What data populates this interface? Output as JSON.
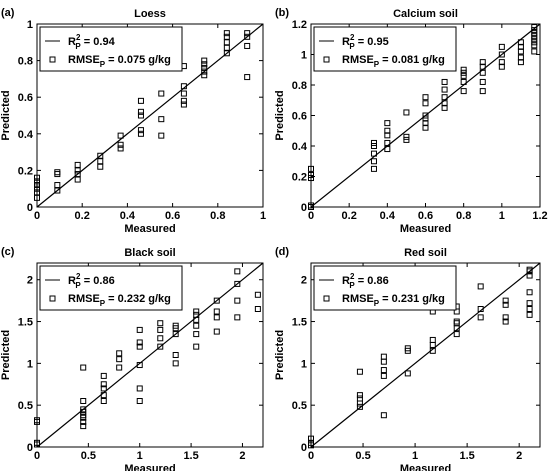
{
  "chart_data": [
    {
      "type": "scatter",
      "panel": "(a)",
      "title": "Loess",
      "x_label": "Measured",
      "y_label": "Predicted",
      "xlim": [
        0,
        1
      ],
      "ylim": [
        0,
        1
      ],
      "xticks": [
        0,
        0.2,
        0.4,
        0.6,
        0.8,
        1
      ],
      "yticks": [
        0,
        0.2,
        0.4,
        0.6,
        0.8,
        1
      ],
      "legend": {
        "fit": {
          "label": "R",
          "sup": "2",
          "sub": "P",
          "text": " = 0.94"
        },
        "points": {
          "label": "RMSE",
          "sub": "P",
          "text": " = 0.075 g/kg"
        }
      },
      "series": [
        {
          "color": "#000000",
          "x": [
            0,
            0,
            0,
            0,
            0,
            0,
            0.09,
            0.09,
            0.09,
            0.09,
            0.18,
            0.18,
            0.18,
            0.18,
            0.28,
            0.28,
            0.28,
            0.37,
            0.37,
            0.37,
            0.46,
            0.46,
            0.46,
            0.46,
            0.46,
            0.55,
            0.55,
            0.55,
            0.65,
            0.65,
            0.65,
            0.65,
            0.65,
            0.74,
            0.74,
            0.74,
            0.74,
            0.74,
            0.84,
            0.84,
            0.84,
            0.84,
            0.84,
            0.93,
            0.93,
            0.93,
            0.93
          ],
          "values": [
            0.05,
            0.08,
            0.1,
            0.12,
            0.14,
            0.16,
            0.09,
            0.12,
            0.18,
            0.19,
            0.15,
            0.18,
            0.2,
            0.23,
            0.22,
            0.25,
            0.28,
            0.32,
            0.34,
            0.39,
            0.4,
            0.42,
            0.5,
            0.52,
            0.58,
            0.39,
            0.48,
            0.62,
            0.56,
            0.58,
            0.62,
            0.66,
            0.77,
            0.72,
            0.74,
            0.76,
            0.78,
            0.8,
            0.84,
            0.87,
            0.9,
            0.93,
            0.95,
            0.71,
            0.88,
            0.93,
            0.95
          ]
        }
      ]
    },
    {
      "type": "scatter",
      "panel": "(b)",
      "title": "Calcium soil",
      "x_label": "Measured",
      "y_label": "Predicted",
      "xlim": [
        0,
        1.2
      ],
      "ylim": [
        0,
        1.2
      ],
      "xticks": [
        0,
        0.2,
        0.4,
        0.6,
        0.8,
        1,
        1.2
      ],
      "yticks": [
        0,
        0.2,
        0.4,
        0.6,
        0.8,
        1,
        1.2
      ],
      "legend": {
        "fit": {
          "label": "R",
          "sup": "2",
          "sub": "P",
          "text": " = 0.95"
        },
        "points": {
          "label": "RMSE",
          "sub": "P",
          "text": " = 0.081 g/kg"
        }
      },
      "series": [
        {
          "color": "#000000",
          "x": [
            0,
            0,
            0,
            0,
            0,
            0.33,
            0.33,
            0.33,
            0.33,
            0.33,
            0.4,
            0.4,
            0.4,
            0.4,
            0.4,
            0.5,
            0.5,
            0.5,
            0.6,
            0.6,
            0.6,
            0.6,
            0.6,
            0.6,
            0.7,
            0.7,
            0.7,
            0.7,
            0.7,
            0.8,
            0.8,
            0.8,
            0.8,
            0.8,
            0.9,
            0.9,
            0.9,
            0.9,
            0.9,
            1,
            1,
            1,
            1,
            1.1,
            1.1,
            1.1,
            1.1,
            1.1,
            1.17,
            1.17,
            1.17,
            1.17,
            1.17,
            1.17,
            1.17,
            1.17
          ],
          "values": [
            0,
            0.01,
            0.19,
            0.21,
            0.25,
            0.25,
            0.3,
            0.35,
            0.4,
            0.42,
            0.38,
            0.42,
            0.47,
            0.5,
            0.55,
            0.44,
            0.46,
            0.62,
            0.52,
            0.55,
            0.58,
            0.6,
            0.68,
            0.72,
            0.65,
            0.68,
            0.72,
            0.77,
            0.82,
            0.76,
            0.82,
            0.86,
            0.88,
            0.9,
            0.76,
            0.82,
            0.88,
            0.92,
            0.95,
            0.92,
            0.95,
            1,
            1.05,
            0.95,
            0.98,
            1.02,
            1.05,
            1.08,
            1.02,
            1.06,
            1.08,
            1.1,
            1.12,
            1.14,
            1.16,
            1.18
          ]
        }
      ]
    },
    {
      "type": "scatter",
      "panel": "(c)",
      "title": "Black soil",
      "x_label": "Measured",
      "y_label": "Predicted",
      "xlim": [
        0,
        2.2
      ],
      "ylim": [
        0,
        2.2
      ],
      "xticks": [
        0,
        0.5,
        1,
        1.5,
        2
      ],
      "yticks": [
        0,
        0.5,
        1,
        1.5,
        2
      ],
      "legend": {
        "fit": {
          "label": "R",
          "sup": "2",
          "sub": "P",
          "text": " = 0.86"
        },
        "points": {
          "label": "RMSE",
          "sub": "P",
          "text": " = 0.232 g/kg"
        }
      },
      "series": [
        {
          "color": "#000000",
          "x": [
            0,
            0,
            0,
            0,
            0.45,
            0.45,
            0.45,
            0.45,
            0.45,
            0.45,
            0.45,
            0.45,
            0.65,
            0.65,
            0.65,
            0.65,
            0.65,
            0.8,
            0.8,
            0.8,
            1,
            1,
            1,
            1,
            1,
            1,
            1.2,
            1.2,
            1.2,
            1.2,
            1.35,
            1.35,
            1.35,
            1.35,
            1.35,
            1.55,
            1.55,
            1.55,
            1.55,
            1.55,
            1.55,
            1.75,
            1.75,
            1.75,
            1.75,
            1.95,
            1.95,
            1.95,
            1.95,
            2.15,
            2.15
          ],
          "values": [
            0.03,
            0.05,
            0.3,
            0.32,
            0.25,
            0.3,
            0.35,
            0.38,
            0.42,
            0.45,
            0.55,
            0.95,
            0.55,
            0.62,
            0.7,
            0.75,
            0.85,
            0.95,
            1.05,
            1.12,
            0.55,
            0.7,
            0.98,
            1.2,
            1.25,
            1.4,
            1.2,
            1.3,
            1.4,
            1.48,
            1,
            1.1,
            1.35,
            1.42,
            1.45,
            1.2,
            1.35,
            1.45,
            1.52,
            1.58,
            1.62,
            1.38,
            1.55,
            1.62,
            1.75,
            1.55,
            1.75,
            1.95,
            2.1,
            1.65,
            1.82
          ]
        }
      ]
    },
    {
      "type": "scatter",
      "panel": "(d)",
      "title": "Red soil",
      "x_label": "Measured",
      "y_label": "Predicted",
      "xlim": [
        0,
        2.2
      ],
      "ylim": [
        0,
        2.2
      ],
      "xticks": [
        0,
        0.5,
        1,
        1.5,
        2
      ],
      "yticks": [
        0,
        0.5,
        1,
        1.5,
        2
      ],
      "legend": {
        "fit": {
          "label": "R",
          "sup": "2",
          "sub": "P",
          "text": " = 0.86"
        },
        "points": {
          "label": "RMSE",
          "sub": "P",
          "text": " = 0.231 g/kg"
        }
      },
      "series": [
        {
          "color": "#000000",
          "x": [
            0,
            0,
            0,
            0.47,
            0.47,
            0.47,
            0.47,
            0.47,
            0.7,
            0.7,
            0.7,
            0.7,
            0.7,
            0.93,
            0.93,
            0.93,
            1.17,
            1.17,
            1.17,
            1.17,
            1.4,
            1.4,
            1.4,
            1.4,
            1.4,
            1.4,
            1.63,
            1.63,
            1.63,
            1.87,
            1.87,
            1.87,
            1.87,
            2.1,
            2.1,
            2.1,
            2.1,
            2.1,
            2.1,
            2.1
          ],
          "values": [
            0.02,
            0.05,
            0.1,
            0.48,
            0.52,
            0.58,
            0.62,
            0.9,
            0.38,
            0.85,
            0.92,
            1.02,
            1.08,
            0.88,
            1.15,
            1.18,
            1.15,
            1.22,
            1.28,
            1.62,
            1.35,
            1.42,
            1.48,
            1.5,
            1.62,
            1.68,
            1.55,
            1.65,
            1.92,
            1.5,
            1.55,
            1.7,
            1.75,
            1.58,
            1.65,
            1.72,
            1.85,
            2.05,
            2.1,
            2.12
          ]
        }
      ]
    }
  ]
}
